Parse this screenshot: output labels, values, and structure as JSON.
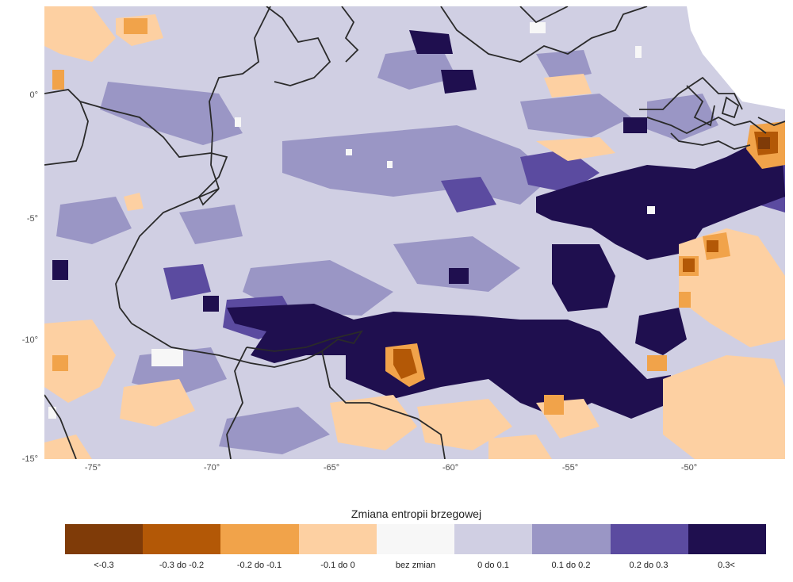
{
  "map": {
    "y_ticks": [
      "0°",
      "-5°",
      "-10°",
      "-15°"
    ],
    "x_ticks": [
      "-75°",
      "-70°",
      "-65°",
      "-60°",
      "-55°",
      "-50°"
    ],
    "lon_range": [
      -77,
      -46
    ],
    "lat_range": [
      3.8,
      -15
    ]
  },
  "legend": {
    "title": "Zmiana entropii brzegowej",
    "items": [
      {
        "label": "<-0.3",
        "color": "#7f3b08"
      },
      {
        "label": "-0.3 do -0.2",
        "color": "#b35806"
      },
      {
        "label": "-0.2 do -0.1",
        "color": "#f1a34a"
      },
      {
        "label": "-0.1 do 0",
        "color": "#fdd0a2"
      },
      {
        "label": "bez zmian",
        "color": "#f7f7f7"
      },
      {
        "label": "0 do 0.1",
        "color": "#d0cfe3"
      },
      {
        "label": "0.1 do 0.2",
        "color": "#9a96c5"
      },
      {
        "label": "0.2 do 0.3",
        "color": "#5b4ba0"
      },
      {
        "label": "0.3<",
        "color": "#1f0f4f"
      }
    ]
  }
}
